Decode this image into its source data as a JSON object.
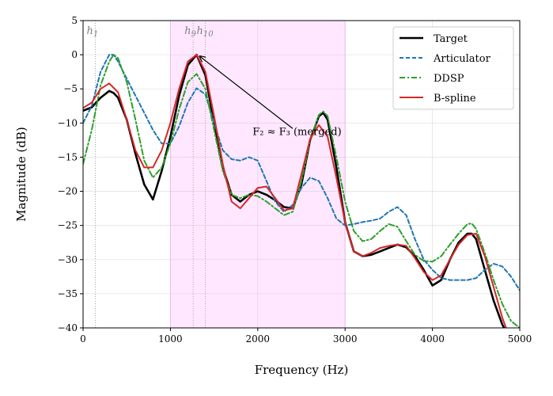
{
  "chart_data": {
    "type": "line",
    "xlabel": "Frequency (Hz)",
    "ylabel": "Magnitude (dB)",
    "xlim": [
      0,
      5000
    ],
    "ylim": [
      -40,
      5
    ],
    "xticks": [
      "0",
      "1000",
      "2000",
      "3000",
      "4000",
      "5000"
    ],
    "yticks": [
      "5",
      "0",
      "−5",
      "−10",
      "−15",
      "−20",
      "−25",
      "−30",
      "−35",
      "−40"
    ],
    "grid": true,
    "legend_position": "top-right",
    "shaded_region": {
      "x": [
        1000,
        3000
      ],
      "color": "#ff66ff"
    },
    "harmonic_lines": [
      {
        "label_main": "h",
        "label_sub": "1",
        "x": 140
      },
      {
        "label_main": "h",
        "label_sub": "9",
        "x": 1260
      },
      {
        "label_main": "h",
        "label_sub": "10",
        "x": 1400
      }
    ],
    "annotation": {
      "text": "F₂ ≈ F₃ (merged)",
      "point": [
        1300,
        0
      ],
      "text_anchor": [
        2450,
        -11.3
      ]
    },
    "series": [
      {
        "name": "Target",
        "color": "#000000",
        "dash": "solid",
        "x": [
          0,
          100,
          200,
          300,
          350,
          400,
          500,
          600,
          700,
          800,
          900,
          1000,
          1100,
          1200,
          1300,
          1400,
          1500,
          1600,
          1700,
          1800,
          1900,
          2000,
          2100,
          2200,
          2300,
          2400,
          2500,
          2600,
          2700,
          2750,
          2800,
          2900,
          3000,
          3100,
          3200,
          3300,
          3400,
          3500,
          3600,
          3700,
          3800,
          3900,
          4000,
          4100,
          4200,
          4300,
          4400,
          4450,
          4500,
          4600,
          4700,
          4800,
          4900
        ],
        "y": [
          -8.2,
          -7.7,
          -6.3,
          -5.3,
          -5.6,
          -6.3,
          -9.5,
          -14.5,
          -19.0,
          -21.2,
          -17.0,
          -12.0,
          -6.0,
          -1.5,
          0.0,
          -3.0,
          -10.0,
          -16.5,
          -20.5,
          -21.5,
          -20.5,
          -20.0,
          -20.5,
          -21.3,
          -22.3,
          -22.5,
          -19.0,
          -12.5,
          -9.0,
          -8.5,
          -9.5,
          -16.5,
          -24.5,
          -28.8,
          -29.5,
          -29.3,
          -28.8,
          -28.3,
          -27.8,
          -28.2,
          -29.5,
          -31.5,
          -33.8,
          -33.0,
          -30.0,
          -27.5,
          -26.2,
          -26.2,
          -27.0,
          -31.5,
          -36.0,
          -39.5,
          -42.0
        ]
      },
      {
        "name": "Articulator",
        "color": "#1f77b4",
        "dash": "5,3",
        "x": [
          0,
          100,
          200,
          300,
          350,
          400,
          500,
          600,
          700,
          800,
          900,
          1000,
          1100,
          1200,
          1300,
          1400,
          1500,
          1600,
          1700,
          1800,
          1900,
          2000,
          2100,
          2200,
          2300,
          2400,
          2500,
          2600,
          2700,
          2800,
          2900,
          3000,
          3100,
          3200,
          3300,
          3400,
          3500,
          3600,
          3700,
          3800,
          3900,
          4000,
          4100,
          4200,
          4300,
          4400,
          4500,
          4600,
          4700,
          4800,
          4900,
          5000
        ],
        "y": [
          -10.0,
          -7.5,
          -2.5,
          0.0,
          0.0,
          -1.0,
          -3.5,
          -6.0,
          -8.5,
          -11.0,
          -13.0,
          -13.0,
          -10.5,
          -7.0,
          -4.9,
          -5.8,
          -10.0,
          -14.0,
          -15.3,
          -15.5,
          -15.0,
          -15.5,
          -18.5,
          -21.5,
          -23.0,
          -22.0,
          -19.5,
          -18.0,
          -18.5,
          -21.0,
          -24.0,
          -25.0,
          -24.8,
          -24.5,
          -24.3,
          -24.0,
          -23.0,
          -22.3,
          -23.5,
          -27.0,
          -30.0,
          -31.5,
          -32.7,
          -33.0,
          -33.0,
          -33.0,
          -32.7,
          -31.5,
          -30.6,
          -31.0,
          -32.5,
          -34.5
        ]
      },
      {
        "name": "DDSP",
        "color": "#2ca02c",
        "dash": "7,3,2,3",
        "x": [
          0,
          100,
          200,
          300,
          350,
          400,
          500,
          600,
          700,
          800,
          900,
          1000,
          1100,
          1200,
          1300,
          1400,
          1500,
          1600,
          1700,
          1800,
          1900,
          2000,
          2100,
          2200,
          2300,
          2400,
          2500,
          2600,
          2700,
          2750,
          2800,
          2900,
          3000,
          3100,
          3200,
          3300,
          3400,
          3500,
          3600,
          3700,
          3800,
          3900,
          4000,
          4100,
          4200,
          4300,
          4400,
          4450,
          4500,
          4600,
          4700,
          4800,
          4900,
          5000
        ],
        "y": [
          -16.0,
          -11.0,
          -4.5,
          -1.0,
          0.0,
          -0.5,
          -4.0,
          -9.5,
          -15.5,
          -18.0,
          -16.5,
          -13.0,
          -8.0,
          -4.0,
          -2.8,
          -5.0,
          -11.0,
          -17.0,
          -20.5,
          -21.0,
          -20.5,
          -20.7,
          -21.5,
          -22.5,
          -23.5,
          -23.0,
          -18.5,
          -12.5,
          -8.8,
          -8.3,
          -9.0,
          -15.0,
          -21.5,
          -25.8,
          -27.3,
          -27.0,
          -25.8,
          -24.8,
          -25.2,
          -27.3,
          -29.3,
          -30.2,
          -30.3,
          -29.5,
          -27.8,
          -26.2,
          -24.8,
          -24.7,
          -25.5,
          -29.0,
          -33.0,
          -36.5,
          -39.0,
          -40.0
        ]
      },
      {
        "name": "B-spline",
        "color": "#d62728",
        "dash": "solid",
        "x": [
          0,
          100,
          200,
          300,
          400,
          500,
          600,
          700,
          800,
          900,
          1000,
          1100,
          1200,
          1300,
          1400,
          1500,
          1600,
          1700,
          1800,
          1900,
          2000,
          2100,
          2200,
          2300,
          2400,
          2500,
          2600,
          2700,
          2800,
          2900,
          3000,
          3100,
          3200,
          3300,
          3400,
          3500,
          3600,
          3700,
          3800,
          3900,
          4000,
          4100,
          4200,
          4300,
          4400,
          4500,
          4600,
          4700,
          4800,
          4900
        ],
        "y": [
          -7.8,
          -7.0,
          -5.0,
          -4.2,
          -5.5,
          -9.5,
          -14.0,
          -16.5,
          -16.5,
          -14.0,
          -10.0,
          -5.0,
          -1.0,
          0.0,
          -2.5,
          -9.0,
          -16.0,
          -21.5,
          -22.5,
          -21.0,
          -19.5,
          -19.3,
          -21.0,
          -22.8,
          -22.5,
          -17.5,
          -12.3,
          -10.3,
          -12.0,
          -18.0,
          -24.5,
          -28.8,
          -29.5,
          -29.0,
          -28.3,
          -28.0,
          -27.8,
          -28.0,
          -29.8,
          -31.8,
          -33.0,
          -32.3,
          -30.0,
          -27.8,
          -26.4,
          -26.2,
          -29.5,
          -34.0,
          -38.5,
          -42.0
        ]
      }
    ]
  }
}
